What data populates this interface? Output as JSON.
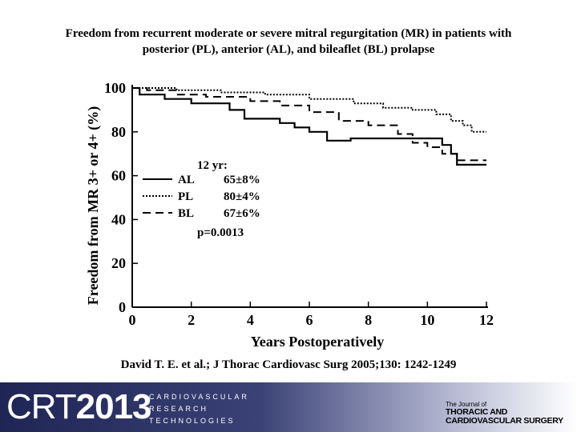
{
  "title": {
    "line1": "Freedom from recurrent moderate or severe mitral regurgitation (MR) in patients with",
    "line2": "posterior (PL), anterior (AL), and bileaflet (BL) prolapse"
  },
  "citation": "David  T. E. et al.; J Thorac Cardiovasc Surg 2005;130: 1242-1249",
  "footer": {
    "logo_left": "CRT",
    "logo_year": "2013",
    "tagline": [
      "CARDIOVASCULAR",
      "RESEARCH",
      "TECHNOLOGIES"
    ],
    "journal_small": "The Journal of",
    "journal_line1": "THORACIC AND",
    "journal_line2": "CARDIOVASCULAR SURGERY"
  },
  "chart_data": {
    "type": "line",
    "title": "Freedom from recurrent moderate or severe mitral regurgitation (MR) in patients with posterior (PL), anterior (AL), and bileaflet (BL) prolapse",
    "xlabel": "Years Postoperatively",
    "ylabel": "Freedom from  MR 3+ or 4+ (%)",
    "xlim": [
      0,
      12
    ],
    "ylim": [
      0,
      100
    ],
    "xticks": [
      0,
      2,
      4,
      6,
      8,
      10,
      12
    ],
    "yticks": [
      0,
      20,
      40,
      60,
      80,
      100
    ],
    "grid": false,
    "legend": {
      "title": "12 yr:",
      "placement": "upper-middle",
      "entries": [
        {
          "series": "AL",
          "label": "AL",
          "value": "65±8%"
        },
        {
          "series": "PL",
          "label": "PL",
          "value": "80±4%"
        },
        {
          "series": "BL",
          "label": "BL",
          "value": "67±6%"
        }
      ],
      "pvalue": "p=0.0013"
    },
    "series": [
      {
        "name": "AL",
        "style": "solid",
        "x": [
          0,
          0.25,
          0.25,
          1.1,
          1.1,
          2.0,
          2.0,
          3.3,
          3.3,
          3.8,
          3.8,
          5.0,
          5.0,
          5.5,
          5.5,
          6.0,
          6.0,
          6.6,
          6.6,
          7.4,
          7.4,
          10.5,
          10.5,
          10.8,
          10.8,
          11.0,
          11.0,
          12.0
        ],
        "y": [
          100,
          100,
          97,
          97,
          95,
          95,
          93,
          93,
          90,
          90,
          86,
          86,
          84,
          84,
          82,
          82,
          80,
          80,
          76,
          76,
          77,
          77,
          74,
          74,
          70,
          70,
          65,
          65
        ]
      },
      {
        "name": "PL",
        "style": "dotted",
        "x": [
          0,
          1.5,
          1.5,
          3.0,
          3.0,
          4.5,
          4.5,
          6.0,
          6.0,
          7.5,
          7.5,
          8.5,
          8.5,
          9.5,
          9.5,
          10.3,
          10.3,
          10.8,
          10.8,
          11.2,
          11.2,
          11.5,
          11.5,
          12.0
        ],
        "y": [
          100,
          100,
          99,
          99,
          98,
          98,
          97,
          97,
          95,
          95,
          93,
          93,
          91,
          91,
          90,
          90,
          88,
          88,
          85,
          85,
          83,
          83,
          80,
          80
        ]
      },
      {
        "name": "BL",
        "style": "dashed",
        "x": [
          0,
          0.5,
          0.5,
          1.5,
          1.5,
          2.5,
          2.5,
          4.0,
          4.0,
          5.0,
          5.0,
          6.0,
          6.0,
          7.0,
          7.0,
          8.0,
          8.0,
          9.0,
          9.0,
          9.5,
          9.5,
          10.0,
          10.0,
          10.5,
          10.5,
          11.0,
          11.0,
          12.0
        ],
        "y": [
          100,
          100,
          99,
          99,
          97,
          97,
          96,
          96,
          94,
          94,
          92,
          92,
          89,
          89,
          85,
          85,
          83,
          83,
          79,
          79,
          75,
          75,
          73,
          73,
          70,
          70,
          67,
          67
        ]
      }
    ]
  }
}
